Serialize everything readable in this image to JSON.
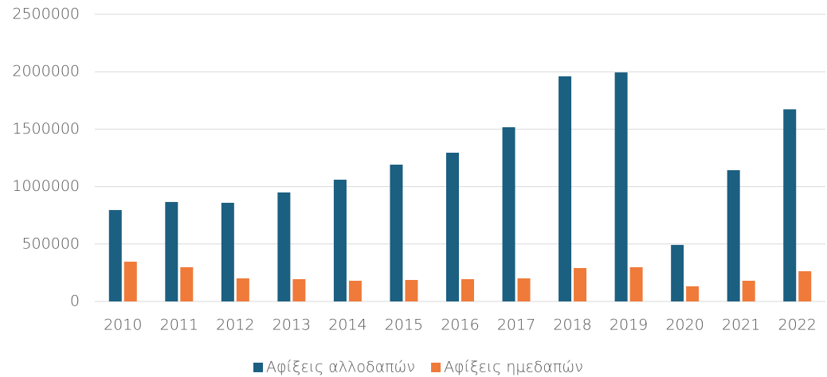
{
  "chart_data": {
    "type": "bar",
    "categories": [
      "2010",
      "2011",
      "2012",
      "2013",
      "2014",
      "2015",
      "2016",
      "2017",
      "2018",
      "2019",
      "2020",
      "2021",
      "2022"
    ],
    "series": [
      {
        "name": "Αφίξεις αλλοδαπών",
        "color": "#1b5f81",
        "values": [
          796000,
          866000,
          859000,
          949000,
          1060000,
          1191000,
          1295000,
          1517000,
          1960000,
          1994000,
          492000,
          1143000,
          1673000
        ]
      },
      {
        "name": "Αφίξεις ημεδαπών",
        "color": "#ef7a3a",
        "values": [
          346000,
          298000,
          201000,
          194000,
          180000,
          187000,
          194000,
          201000,
          291000,
          298000,
          132000,
          180000,
          263000
        ]
      }
    ],
    "ylim": [
      0,
      2500000
    ],
    "yticks": [
      0,
      500000,
      1000000,
      1500000,
      2000000,
      2500000
    ],
    "grid": true,
    "legend": "bottom"
  }
}
